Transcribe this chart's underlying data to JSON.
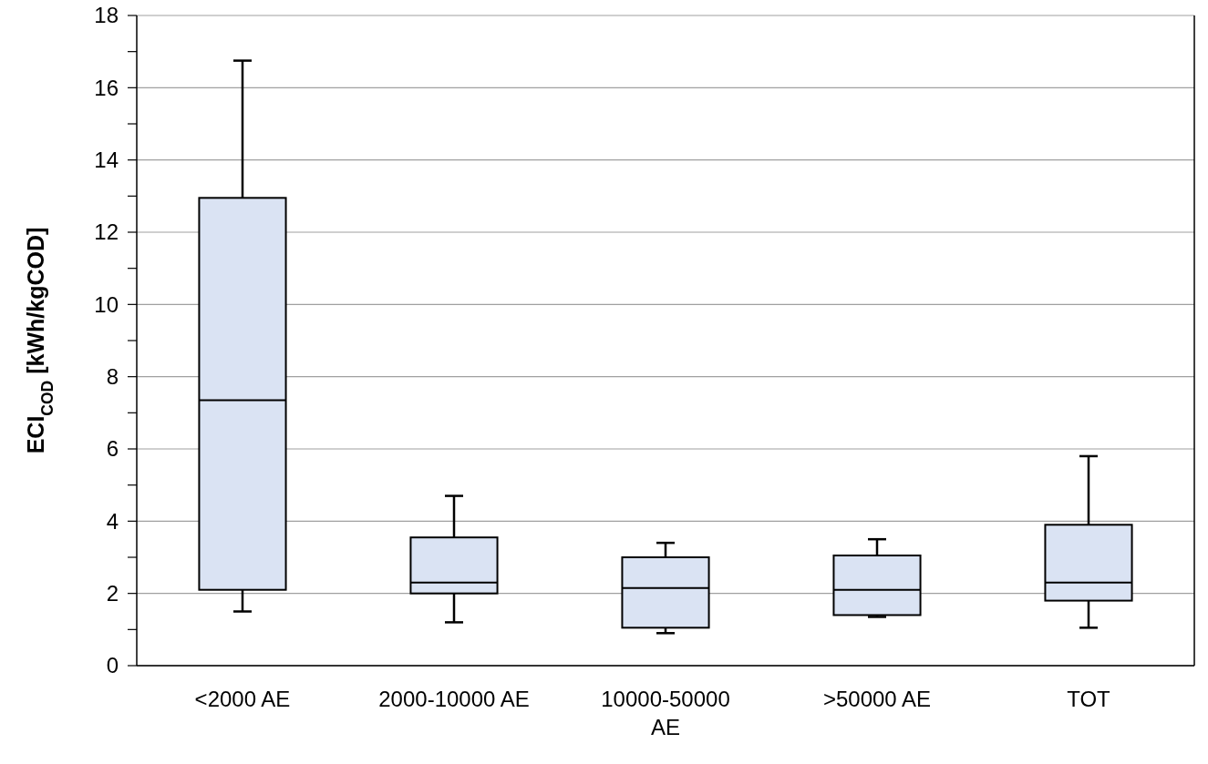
{
  "chart_data": {
    "type": "box",
    "ylabel": "ECI$_{COD}$ [kWh/kgCOD]",
    "categories": [
      "<2000 AE",
      "2000-10000 AE",
      "10000-50000 AE",
      ">50000 AE",
      "TOT"
    ],
    "boxes": [
      {
        "low": 1.5,
        "q1": 2.1,
        "median": 7.35,
        "q3": 12.95,
        "high": 16.75
      },
      {
        "low": 1.2,
        "q1": 2.0,
        "median": 2.3,
        "q3": 3.55,
        "high": 4.7
      },
      {
        "low": 0.9,
        "q1": 1.05,
        "median": 2.15,
        "q3": 3.0,
        "high": 3.4
      },
      {
        "low": 1.35,
        "q1": 1.4,
        "median": 2.1,
        "q3": 3.05,
        "high": 3.5
      },
      {
        "low": 1.05,
        "q1": 1.8,
        "median": 2.3,
        "q3": 3.9,
        "high": 5.8
      }
    ],
    "color": "#dae3f3",
    "ylim": [
      0,
      18
    ],
    "yticks": [
      0,
      {
        "value": 1,
        "label": null
      },
      2,
      {
        "value": 3,
        "label": null
      },
      4,
      {
        "value": 5,
        "label": null
      },
      6,
      {
        "value": 7,
        "label": null
      },
      8,
      {
        "value": 9,
        "label": null
      },
      10,
      {
        "value": 11,
        "label": null
      },
      12,
      {
        "value": 13,
        "label": null
      },
      14,
      {
        "value": 15,
        "label": null
      },
      16,
      {
        "value": 17,
        "label": null
      },
      18
    ],
    "grid": "y"
  }
}
